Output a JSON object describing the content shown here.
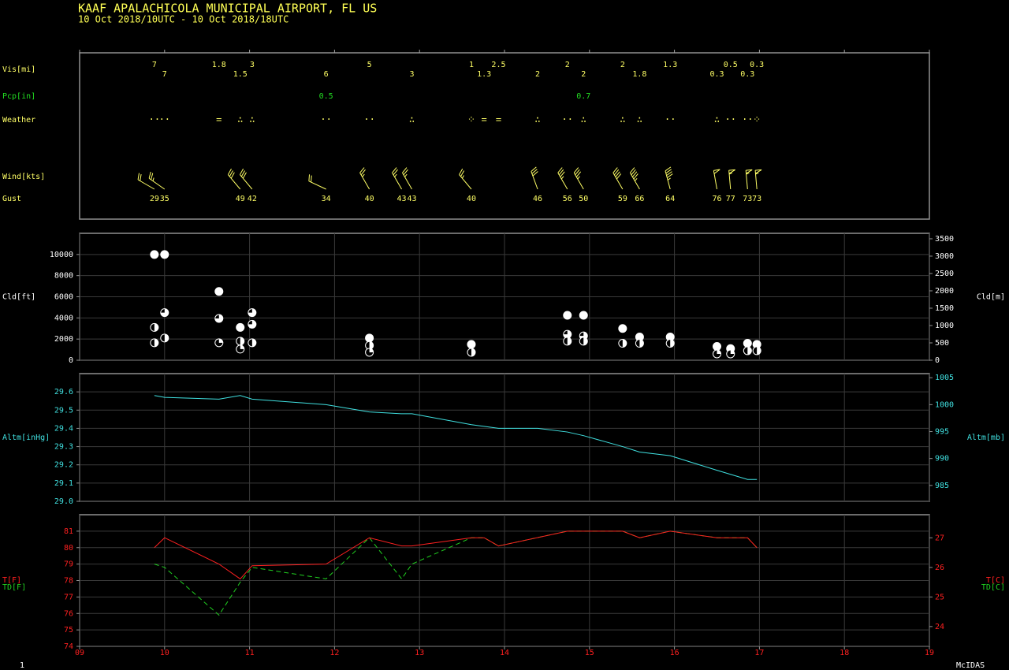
{
  "header": {
    "title": "KAAF  APALACHICOLA MUNICIPAL AIRPORT, FL US",
    "subtitle": "10 Oct 2018/10UTC - 10 Oct 2018/18UTC"
  },
  "footer": {
    "frame": "1",
    "software": "McIDAS"
  },
  "chart_data": [
    {
      "type": "station_table",
      "visibility": {
        "label": "Vis[mi]",
        "color": "#ffff66",
        "x": [
          9.88,
          10.0,
          10.64,
          10.89,
          11.03,
          11.9,
          12.41,
          12.91,
          13.61,
          13.76,
          13.93,
          14.39,
          14.74,
          14.93,
          15.39,
          15.59,
          15.95,
          16.5,
          16.66,
          16.86,
          16.97
        ],
        "values": [
          7,
          7,
          1.8,
          1.5,
          3,
          6,
          5,
          3,
          1,
          1.3,
          2.5,
          2,
          2,
          2,
          2,
          1.8,
          1.3,
          0.3,
          0.5,
          0.3,
          0.3
        ]
      },
      "precipitation": {
        "label": "Pcp[in]",
        "color": "#22dd22",
        "x": [
          11.9,
          14.93
        ],
        "values": [
          0.5,
          0.7
        ]
      },
      "weather": {
        "label": "Weather",
        "color": "#ffff66",
        "x": [
          9.88,
          10.0,
          10.64,
          10.89,
          11.03,
          11.9,
          12.41,
          12.91,
          13.61,
          13.76,
          13.93,
          14.39,
          14.74,
          14.93,
          15.39,
          15.59,
          15.95,
          16.5,
          16.66,
          16.86,
          16.97
        ],
        "values": [
          "··",
          "··",
          "=",
          "∴",
          "∴",
          "··",
          "··",
          "∴",
          "⁘",
          "=",
          "=",
          "∴",
          "··",
          "∴",
          "∴",
          "∴",
          "··",
          "∴",
          "··",
          "··",
          "⁘"
        ]
      },
      "wind": {
        "label": "Wind[kts]",
        "color": "#ffff66",
        "x": [
          9.88,
          10.0,
          10.89,
          11.03,
          11.9,
          12.41,
          12.79,
          12.91,
          13.61,
          14.39,
          14.74,
          14.93,
          15.39,
          15.59,
          15.95,
          16.5,
          16.66,
          16.86,
          16.97
        ],
        "speed": [
          20,
          25,
          30,
          30,
          20,
          25,
          25,
          25,
          25,
          30,
          35,
          35,
          40,
          45,
          45,
          50,
          55,
          55,
          55
        ],
        "direction": [
          300,
          305,
          320,
          320,
          295,
          330,
          330,
          330,
          320,
          340,
          330,
          330,
          330,
          330,
          345,
          350,
          355,
          355,
          355
        ]
      },
      "gust": {
        "label": "Gust",
        "color": "#ffff66",
        "x": [
          9.88,
          10.0,
          10.89,
          11.03,
          11.9,
          12.41,
          12.79,
          12.91,
          13.61,
          14.39,
          14.74,
          14.93,
          15.39,
          15.59,
          15.95,
          16.5,
          16.66,
          16.86,
          16.97
        ],
        "values": [
          29,
          35,
          49,
          42,
          34,
          40,
          43,
          43,
          40,
          46,
          56,
          50,
          59,
          66,
          64,
          76,
          77,
          73,
          73
        ]
      }
    },
    {
      "type": "scatter",
      "ylabel": "Cld[ft]",
      "y2label": "Cld[m]",
      "color": "#ffffff",
      "axis_color": "#ffffff",
      "grid": true,
      "x": [
        9.88,
        9.88,
        9.88,
        10.0,
        10.0,
        10.0,
        10.64,
        10.64,
        10.64,
        10.89,
        10.89,
        10.89,
        11.03,
        11.03,
        11.03,
        12.41,
        12.41,
        12.41,
        13.61,
        13.61,
        14.74,
        14.74,
        14.74,
        14.93,
        14.93,
        14.93,
        15.39,
        15.39,
        15.59,
        15.59,
        15.95,
        15.95,
        16.5,
        16.5,
        16.66,
        16.66,
        16.86,
        16.86,
        16.97,
        16.97
      ],
      "values": [
        10000,
        3100,
        1650,
        10000,
        4500,
        2100,
        6500,
        3950,
        1650,
        3100,
        1800,
        1050,
        4500,
        3400,
        1650,
        2100,
        1400,
        750,
        1500,
        750,
        4250,
        2450,
        1800,
        4250,
        2300,
        1800,
        3000,
        1600,
        2200,
        1600,
        2200,
        1600,
        1300,
        600,
        1100,
        600,
        1600,
        900,
        1500,
        900
      ],
      "cover": [
        8,
        4,
        4,
        8,
        6,
        4,
        8,
        6,
        2,
        8,
        4,
        2,
        6,
        6,
        4,
        8,
        4,
        2,
        8,
        4,
        8,
        6,
        4,
        8,
        6,
        4,
        8,
        4,
        8,
        4,
        8,
        4,
        8,
        2,
        8,
        2,
        8,
        4,
        8,
        4
      ],
      "ylim": [
        0,
        12000
      ],
      "yticks": [
        0,
        2000,
        4000,
        6000,
        8000,
        10000
      ],
      "y2lim": [
        0,
        3658
      ],
      "y2ticks": [
        0,
        500,
        1000,
        1500,
        2000,
        2500,
        3000,
        3500
      ]
    },
    {
      "type": "line",
      "ylabel": "Altm[inHg]",
      "y2label": "Altm[mb]",
      "axis_color": "#40e0e0",
      "grid": true,
      "x": [
        9.88,
        10.0,
        10.64,
        10.89,
        11.03,
        11.9,
        12.41,
        12.79,
        12.91,
        13.61,
        13.93,
        14.39,
        14.74,
        14.93,
        15.39,
        15.59,
        15.95,
        16.5,
        16.86,
        16.97
      ],
      "series": [
        {
          "color": "#40e0e0",
          "values": [
            29.58,
            29.57,
            29.56,
            29.58,
            29.56,
            29.53,
            29.49,
            29.48,
            29.48,
            29.42,
            29.4,
            29.4,
            29.38,
            29.36,
            29.3,
            29.27,
            29.25,
            29.17,
            29.12,
            29.12
          ]
        }
      ],
      "ylim": [
        29.0,
        29.7
      ],
      "yticks": [
        {
          "value": 29.0,
          "label": "29.0"
        },
        29.1,
        29.2,
        29.3,
        29.4,
        29.5,
        29.6
      ],
      "y2lim": [
        982.05,
        1005.76
      ],
      "y2ticks": [
        985,
        990,
        995,
        1000,
        1005
      ]
    },
    {
      "type": "line",
      "axis_color": "#ff2020",
      "grid": true,
      "x": [
        9.88,
        10.0,
        10.64,
        10.89,
        11.03,
        11.9,
        12.41,
        12.79,
        12.91,
        13.61,
        13.76,
        13.93,
        14.74,
        14.93,
        15.39,
        15.59,
        15.95,
        16.5,
        16.66,
        16.86,
        16.97
      ],
      "series": [
        {
          "name": "T[F]",
          "y2name": "T[C]",
          "color": "#ff2020",
          "values": [
            80.0,
            80.6,
            79.0,
            78.1,
            78.9,
            79.0,
            80.6,
            80.1,
            80.1,
            80.6,
            80.6,
            80.1,
            81.0,
            81.0,
            81.0,
            80.6,
            81.0,
            80.6,
            80.6,
            80.6,
            80.0
          ]
        },
        {
          "name": "TD[F]",
          "y2name": "TD[C]",
          "color": "#20d020",
          "dashed": true,
          "values": [
            79.0,
            78.8,
            75.9,
            77.9,
            78.8,
            78.1,
            80.6,
            78.1,
            79.0,
            80.6,
            80.6,
            80.1,
            81.0,
            81.0,
            81.0,
            80.6,
            81.0,
            80.6,
            80.6,
            80.6,
            80.0
          ]
        }
      ],
      "ylim": [
        74,
        82
      ],
      "yticks": [
        74,
        75,
        76,
        77,
        78,
        79,
        80,
        81
      ],
      "y2lim": [
        23.33,
        27.78
      ],
      "y2ticks": [
        24,
        25,
        26,
        27
      ],
      "xlim": [
        9,
        19
      ],
      "xticks": [
        {
          "value": 9,
          "label": "09"
        },
        10,
        11,
        12,
        13,
        14,
        15,
        16,
        17,
        18,
        19
      ]
    }
  ]
}
